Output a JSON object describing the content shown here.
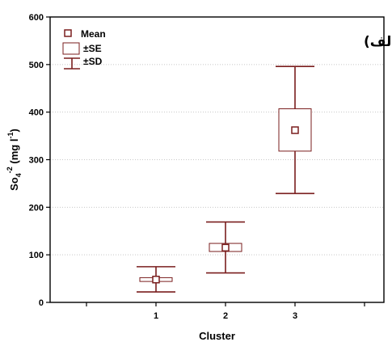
{
  "chart_data": {
    "type": "box",
    "panel_label": "(الف)",
    "xlabel": "Cluster",
    "ylabel": "So4-2 (mg l-1)",
    "ylabel_parts": {
      "base": "So",
      "sub": "4",
      "sup1": "-2",
      "mid": " (mg l",
      "sup2": "-1",
      "end": ")"
    },
    "ylim": [
      0,
      600
    ],
    "yticks": [
      "0",
      "100",
      "200",
      "300",
      "400",
      "500",
      "600"
    ],
    "categories": [
      "1",
      "2",
      "3"
    ],
    "grid": "horizontal dotted",
    "legend": {
      "position": "top-left",
      "items": [
        {
          "symbol": "square-marker",
          "label": "Mean"
        },
        {
          "symbol": "box",
          "label": "±SE"
        },
        {
          "symbol": "whisker",
          "label": "±SD"
        }
      ]
    },
    "series": [
      {
        "stats": [
          {
            "category": "1",
            "mean": 48,
            "se_low": 44,
            "se_high": 52,
            "sd_low": 22,
            "sd_high": 75
          },
          {
            "category": "2",
            "mean": 115,
            "se_low": 107,
            "se_high": 124,
            "sd_low": 62,
            "sd_high": 169
          },
          {
            "category": "3",
            "mean": 362,
            "se_low": 318,
            "se_high": 407,
            "sd_low": 229,
            "sd_high": 496
          }
        ]
      }
    ],
    "colors": {
      "marks": "#7a1e1e",
      "grid": "#c8c8c8",
      "axis": "#000000"
    }
  }
}
